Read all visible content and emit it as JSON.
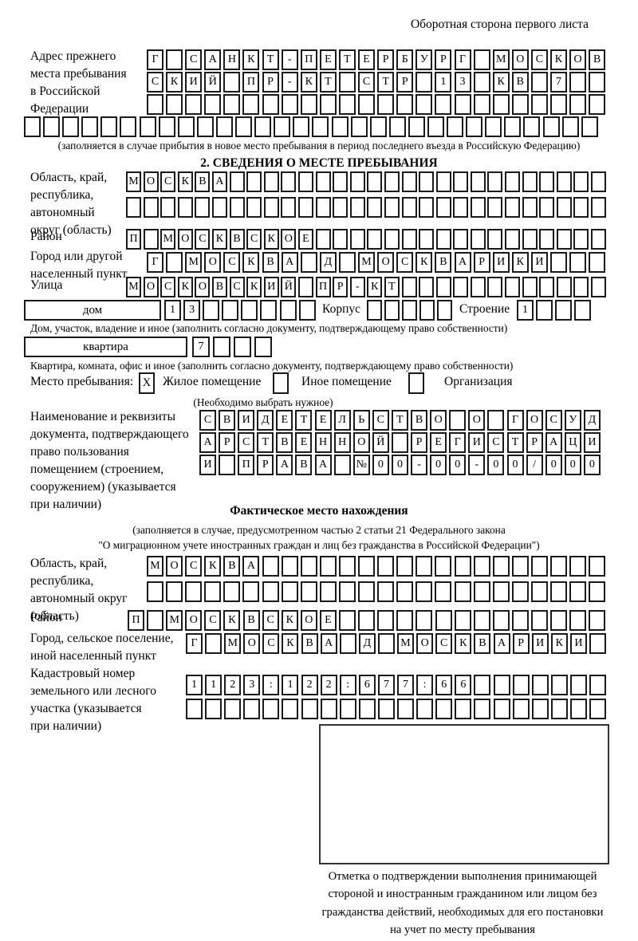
{
  "colors": {
    "ink": "#000000",
    "cell_border": "#1a1a1a",
    "background": "#ffffff"
  },
  "page": {
    "corner_note": "Оборотная сторона первого листа"
  },
  "prev_address": {
    "label": "Адрес прежнего\nместа пребывания\nв Российской\nФедерации",
    "rows": [
      [
        "Г",
        "",
        "С",
        "А",
        "Н",
        "К",
        "Т",
        "-",
        "П",
        "Е",
        "Т",
        "Е",
        "Р",
        "Б",
        "У",
        "Р",
        "Г",
        "",
        "М",
        "О",
        "С",
        "К",
        "О",
        "В"
      ],
      [
        "С",
        "К",
        "И",
        "Й",
        "",
        "П",
        "Р",
        "-",
        "К",
        "Т",
        "",
        "С",
        "Т",
        "Р",
        "",
        "1",
        "3",
        "",
        "К",
        "В",
        "",
        "7",
        "",
        ""
      ],
      [
        "",
        "",
        "",
        "",
        "",
        "",
        "",
        "",
        "",
        "",
        "",
        "",
        "",
        "",
        "",
        "",
        "",
        "",
        "",
        "",
        "",
        "",
        "",
        ""
      ],
      [
        "",
        "",
        "",
        "",
        "",
        "",
        "",
        "",
        "",
        "",
        "",
        "",
        "",
        "",
        "",
        "",
        "",
        "",
        "",
        "",
        "",
        "",
        "",
        "",
        "",
        "",
        "",
        "",
        "",
        ""
      ]
    ],
    "note": "(заполняется в случае прибытия в новое место пребывания в период последнего въезда в Российскую Федерацию)"
  },
  "section2": {
    "title": "2. СВЕДЕНИЯ О МЕСТЕ ПРЕБЫВАНИЯ",
    "oblast": {
      "label": "Область, край,\nреспублика,\nавтономный\nокруг (область)",
      "rows": [
        [
          "М",
          "О",
          "С",
          "К",
          "В",
          "А",
          "",
          "",
          "",
          "",
          "",
          "",
          "",
          "",
          "",
          "",
          "",
          "",
          "",
          "",
          "",
          "",
          "",
          "",
          "",
          "",
          "",
          ""
        ],
        [
          "",
          "",
          "",
          "",
          "",
          "",
          "",
          "",
          "",
          "",
          "",
          "",
          "",
          "",
          "",
          "",
          "",
          "",
          "",
          "",
          "",
          "",
          "",
          "",
          "",
          "",
          "",
          ""
        ]
      ]
    },
    "raion": {
      "label": "Район",
      "row": [
        "П",
        "",
        "М",
        "О",
        "С",
        "К",
        "В",
        "С",
        "К",
        "О",
        "Е",
        "",
        "",
        "",
        "",
        "",
        "",
        "",
        "",
        "",
        "",
        "",
        "",
        "",
        "",
        "",
        "",
        ""
      ]
    },
    "gorod": {
      "label": "Город или другой\nнаселенный пункт",
      "row": [
        "Г",
        "",
        "М",
        "О",
        "С",
        "К",
        "В",
        "А",
        "",
        "Д",
        "",
        "М",
        "О",
        "С",
        "К",
        "В",
        "А",
        "Р",
        "И",
        "К",
        "И",
        "",
        "",
        ""
      ]
    },
    "ulitsa": {
      "label": "Улица",
      "row": [
        "М",
        "О",
        "С",
        "К",
        "О",
        "В",
        "С",
        "К",
        "И",
        "Й",
        "",
        "П",
        "Р",
        "-",
        "К",
        "Т",
        "",
        "",
        "",
        "",
        "",
        "",
        "",
        "",
        "",
        "",
        "",
        ""
      ]
    },
    "dom": {
      "box_label": "дом",
      "cells": [
        "1",
        "3",
        "",
        "",
        "",
        "",
        "",
        ""
      ],
      "korpus_label": "Корпус",
      "korpus_cells": [
        "",
        "",
        "",
        "",
        ""
      ],
      "stroenie_label": "Строение",
      "stroenie_cells": [
        "1",
        "",
        "",
        ""
      ]
    },
    "dom_note": "Дом, участок, владение и иное (заполнить согласно документу, подтверждающему право собственности)",
    "kvartira": {
      "box_label": "квартира",
      "cells": [
        "7",
        "",
        "",
        ""
      ]
    },
    "kvartira_note": "Квартира, комната, офис и иное (заполнить согласно документу, подтверждающему право собственности)",
    "mesto": {
      "label": "Место пребывания:",
      "options": [
        {
          "label": "Жилое помещение",
          "mark": "X"
        },
        {
          "label": "Иное помещение",
          "mark": ""
        },
        {
          "label": "Организация",
          "mark": ""
        }
      ],
      "note": "(Необходимо выбрать нужное)"
    },
    "doc": {
      "label": "Наименование и реквизиты\nдокумента, подтверждающего\nправо пользования\nпомещением (строением,\nсооружением) (указывается\nпри наличии)",
      "rows": [
        [
          "С",
          "В",
          "И",
          "Д",
          "Е",
          "Т",
          "Е",
          "Л",
          "Ь",
          "С",
          "Т",
          "В",
          "О",
          "",
          "О",
          "",
          "Г",
          "О",
          "С",
          "У",
          "Д"
        ],
        [
          "А",
          "Р",
          "С",
          "Т",
          "В",
          "Е",
          "Н",
          "Н",
          "О",
          "Й",
          "",
          "Р",
          "Е",
          "Г",
          "И",
          "С",
          "Т",
          "Р",
          "А",
          "Ц",
          "И"
        ],
        [
          "И",
          "",
          "П",
          "Р",
          "А",
          "В",
          "А",
          "",
          "№",
          "0",
          "0",
          "-",
          "0",
          "0",
          "-",
          "0",
          "0",
          "/",
          "0",
          "0",
          "0"
        ]
      ]
    }
  },
  "fact": {
    "title": "Фактическое место нахождения",
    "note_line1": "(заполняется в случае, предусмотренном частью 2 статьи 21 Федерального закона",
    "note_line2": "\"О миграционном учете иностранных граждан и лиц без гражданства в Российской Федерации\")",
    "oblast": {
      "label": "Область, край,\nреспублика,\nавтономный округ\n(область)",
      "rows": [
        [
          "М",
          "О",
          "С",
          "К",
          "В",
          "А",
          "",
          "",
          "",
          "",
          "",
          "",
          "",
          "",
          "",
          "",
          "",
          "",
          "",
          "",
          "",
          "",
          "",
          ""
        ],
        [
          "",
          "",
          "",
          "",
          "",
          "",
          "",
          "",
          "",
          "",
          "",
          "",
          "",
          "",
          "",
          "",
          "",
          "",
          "",
          "",
          "",
          "",
          "",
          ""
        ]
      ]
    },
    "raion": {
      "label": "Район",
      "row": [
        "П",
        "",
        "М",
        "О",
        "С",
        "К",
        "В",
        "С",
        "К",
        "О",
        "Е",
        "",
        "",
        "",
        "",
        "",
        "",
        "",
        "",
        "",
        "",
        "",
        "",
        "",
        ""
      ]
    },
    "gorod": {
      "label": "Город, сельское поселение,\nиной населенный пункт",
      "row": [
        "Г",
        "",
        "М",
        "О",
        "С",
        "К",
        "В",
        "А",
        "",
        "Д",
        "",
        "М",
        "О",
        "С",
        "К",
        "В",
        "А",
        "Р",
        "И",
        "К",
        "И",
        ""
      ]
    },
    "kadastr": {
      "label": "Кадастровый номер\nземельного или лесного\nучастка (указывается\nпри наличии)",
      "rows": [
        [
          "1",
          "1",
          "2",
          "3",
          ":",
          "1",
          "2",
          "2",
          ":",
          "6",
          "7",
          "7",
          ":",
          "6",
          "6",
          "",
          "",
          "",
          "",
          "",
          "",
          ""
        ],
        [
          "",
          "",
          "",
          "",
          "",
          "",
          "",
          "",
          "",
          "",
          "",
          "",
          "",
          "",
          "",
          "",
          "",
          "",
          "",
          "",
          "",
          ""
        ]
      ]
    },
    "stamp_caption": "Отметка о подтверждении выполнения принимающей\nстороной и иностранным гражданином или лицом без\nгражданства действий, необходимых для его постановки\nна учет по месту пребывания"
  }
}
